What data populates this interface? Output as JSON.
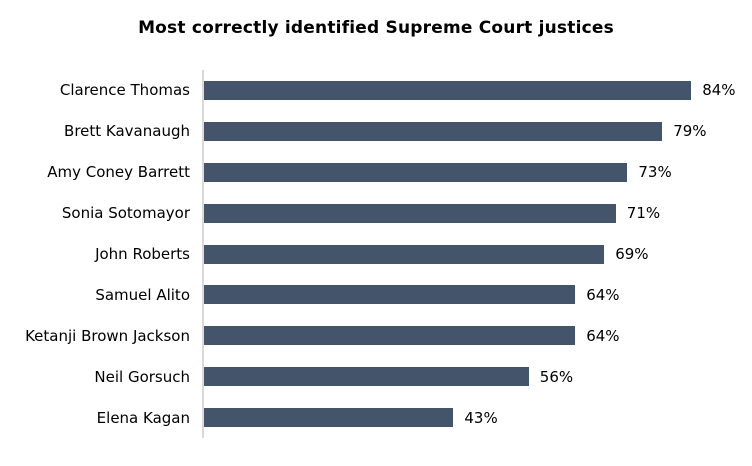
{
  "chart_data": {
    "type": "bar",
    "orientation": "horizontal",
    "title": "Most correctly identified Supreme Court justices",
    "categories": [
      "Clarence Thomas",
      "Brett Kavanaugh",
      "Amy Coney Barrett",
      "Sonia Sotomayor",
      "John Roberts",
      "Samuel Alito",
      "Ketanji Brown Jackson",
      "Neil Gorsuch",
      "Elena Kagan"
    ],
    "values": [
      84,
      79,
      73,
      71,
      69,
      64,
      64,
      56,
      43
    ],
    "value_suffix": "%",
    "xlabel": "",
    "ylabel": "",
    "xlim": [
      0,
      100
    ],
    "grid": false,
    "legend": false,
    "data_labels": true,
    "bar_color": "#44546a",
    "axis_line_color": "#d9d9d9",
    "title_color": "#000000",
    "label_color": "#000000",
    "background_color": "#ffffff"
  }
}
